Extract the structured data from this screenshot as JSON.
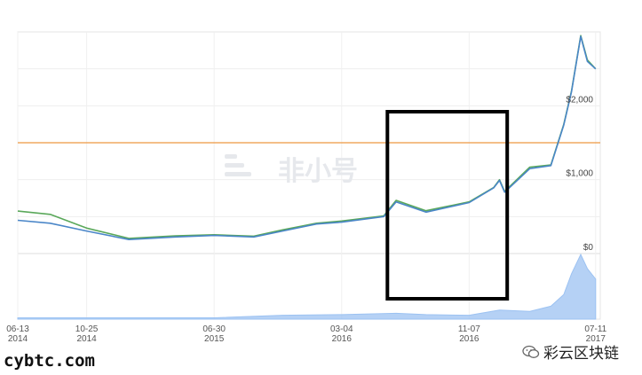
{
  "chart_data": {
    "type": "line",
    "series": [
      {
        "color": "#5aa85a",
        "x": [
          "2014-06-13",
          "2014-08-15",
          "2014-10-25",
          "2015-01-15",
          "2015-04-15",
          "2015-06-30",
          "2015-09-15",
          "2015-11-10",
          "2016-01-15",
          "2016-03-04",
          "2016-05-25",
          "2016-06-18",
          "2016-08-15",
          "2016-11-07",
          "2016-12-25",
          "2017-01-05",
          "2017-01-15",
          "2017-03-05",
          "2017-04-15",
          "2017-05-10",
          "2017-05-25",
          "2017-06-12",
          "2017-06-25",
          "2017-07-11"
        ],
        "y": [
          575,
          530,
          345,
          205,
          240,
          255,
          235,
          320,
          410,
          440,
          510,
          720,
          580,
          700,
          895,
          1000,
          840,
          1170,
          1200,
          1750,
          2200,
          2950,
          2620,
          2500
        ]
      },
      {
        "color": "#4a86c8",
        "x": [
          "2014-06-13",
          "2014-08-15",
          "2014-10-25",
          "2015-01-15",
          "2015-04-15",
          "2015-06-30",
          "2015-09-15",
          "2015-11-10",
          "2016-01-15",
          "2016-03-04",
          "2016-05-25",
          "2016-06-18",
          "2016-08-15",
          "2016-11-07",
          "2016-12-25",
          "2017-01-05",
          "2017-01-15",
          "2017-03-05",
          "2017-04-15",
          "2017-05-10",
          "2017-05-25",
          "2017-06-12",
          "2017-06-25",
          "2017-07-11"
        ],
        "y": [
          450,
          410,
          305,
          190,
          225,
          245,
          225,
          305,
          400,
          425,
          500,
          700,
          560,
          690,
          890,
          990,
          830,
          1150,
          1190,
          1740,
          2190,
          2940,
          2600,
          2500
        ]
      }
    ],
    "x_ticks": [
      {
        "date": "2014-06-13",
        "top": "06-13",
        "bottom": "2014"
      },
      {
        "date": "2014-10-25",
        "top": "10-25",
        "bottom": "2014"
      },
      {
        "date": "2015-06-30",
        "top": "06-30",
        "bottom": "2015"
      },
      {
        "date": "2016-03-04",
        "top": "03-04",
        "bottom": "2016"
      },
      {
        "date": "2016-11-07",
        "top": "11-07",
        "bottom": "2016"
      },
      {
        "date": "2017-07-11",
        "top": "07-11",
        "bottom": "2017"
      }
    ],
    "y_ticks": [
      {
        "value": 0,
        "label": "$0"
      },
      {
        "value": 1000,
        "label": "$1,000"
      },
      {
        "value": 2000,
        "label": "$2,000"
      }
    ],
    "xlim": [
      "2014-06-13",
      "2017-07-20"
    ],
    "ylim": [
      0,
      3000
    ],
    "reference_line": {
      "value": 1500,
      "color": "#f0a860"
    },
    "highlight_box": {
      "x": [
        "2016-06-01",
        "2017-01-20"
      ],
      "color": "#000000"
    },
    "volume": {
      "color": "#9cc2f2",
      "x": [
        "2014-06-13",
        "2015-06-30",
        "2015-11-10",
        "2016-03-04",
        "2016-06-18",
        "2016-08-15",
        "2016-11-07",
        "2017-01-05",
        "2017-03-05",
        "2017-04-15",
        "2017-05-10",
        "2017-05-25",
        "2017-06-12",
        "2017-06-25",
        "2017-07-11"
      ],
      "y": [
        2,
        2,
        6,
        7,
        9,
        7,
        6,
        14,
        12,
        20,
        38,
        70,
        100,
        78,
        62
      ]
    },
    "grid": true
  },
  "watermark": {
    "text": "非小号"
  },
  "site_mark": "cybtc.com",
  "wechat_mark": "彩云区块链"
}
